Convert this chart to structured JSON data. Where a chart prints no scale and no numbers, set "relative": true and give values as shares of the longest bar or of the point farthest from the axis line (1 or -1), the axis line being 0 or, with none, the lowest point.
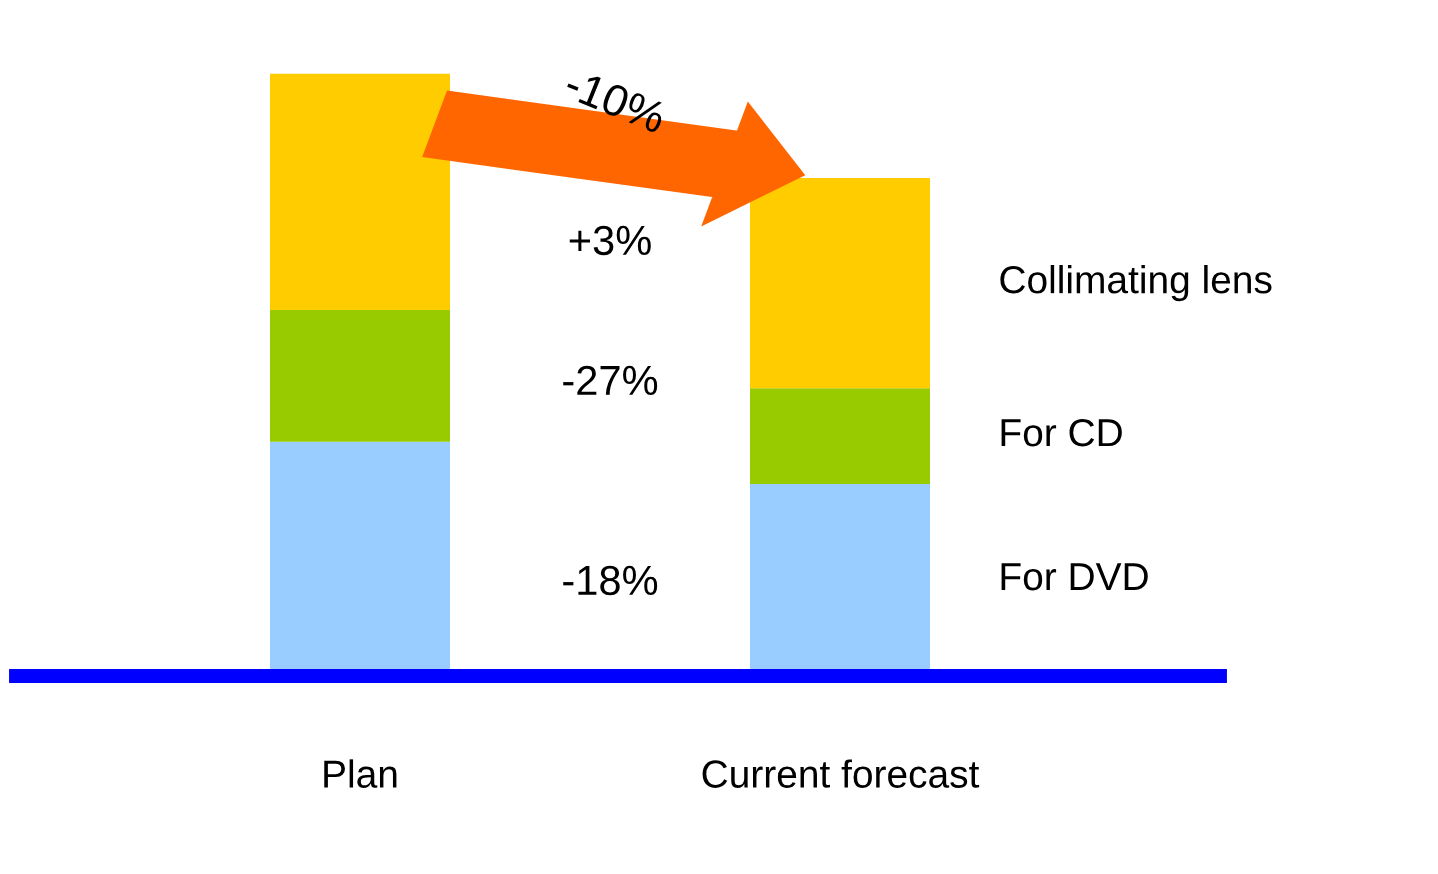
{
  "chart_data": {
    "type": "bar",
    "stacked": true,
    "relative": true,
    "tick_labels": "x",
    "grid": false,
    "legend": false,
    "categories": [
      "Plan",
      "Current forecast"
    ],
    "series": [
      {
        "name": "For DVD",
        "color": "#99ccff",
        "values": [
          0.389,
          0.319
        ]
      },
      {
        "name": "For CD",
        "color": "#99cc00",
        "values": [
          0.219,
          0.159
        ]
      },
      {
        "name": "Collimating lens",
        "color": "#ffcc00",
        "values": [
          0.392,
          0.349
        ]
      }
    ],
    "annotations": [
      "-10%",
      "+3%",
      "-27%",
      "-18%"
    ]
  }
}
